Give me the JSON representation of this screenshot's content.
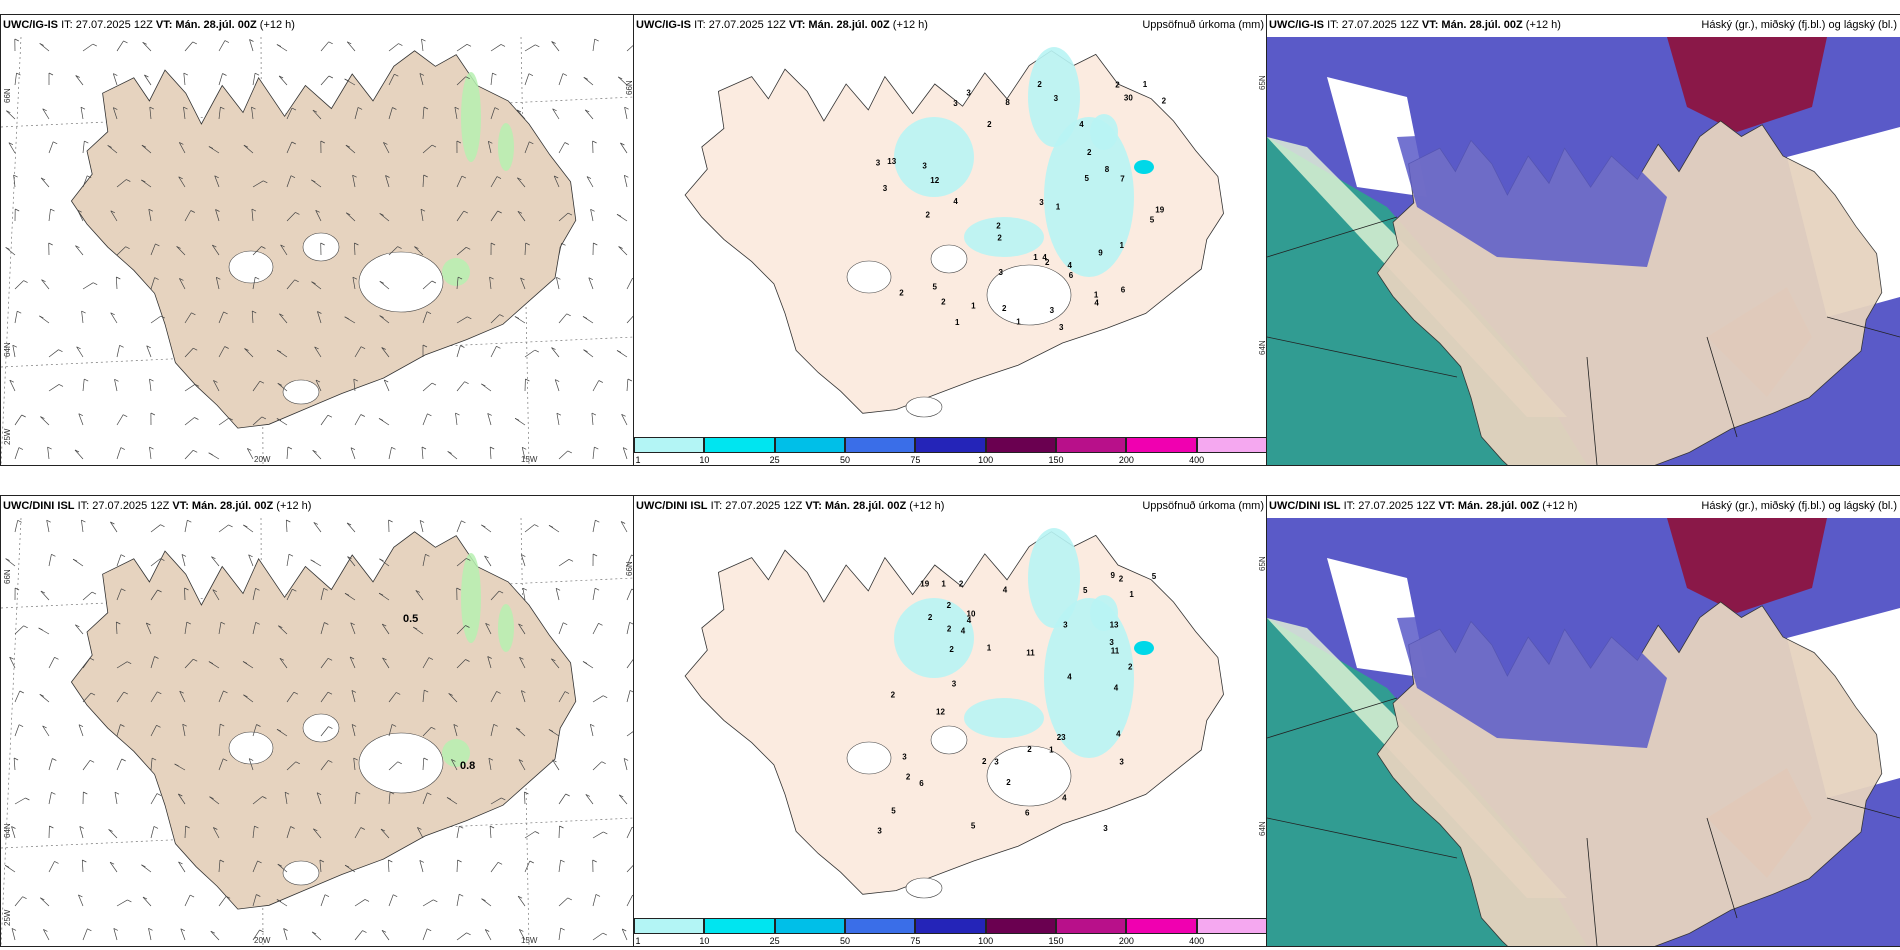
{
  "top": {
    "model": "UWC/IG-IS",
    "init": "IT: 27.07.2025 12Z",
    "vt_label": "VT:",
    "vt": "Mán. 28.júl. 00Z",
    "lead": "(+12 h)"
  },
  "bottom": {
    "model": "UWC/DINI ISL",
    "init": "IT: 27.07.2025 12Z",
    "vt_label": "VT:",
    "vt": "Mán. 28.júl. 00Z",
    "lead": "(+12 h)"
  },
  "precip_title": "Uppsöfnuð úrkoma (mm)",
  "cloud_title": "Háský (gr.), miðský (fj.bl.) og lágský (bl.)",
  "wind_axes": {
    "n66": "66N",
    "n64": "64N",
    "w25": "25W",
    "w20": "20W",
    "w15": "15W"
  },
  "wind_values": {
    "bottom_a": "0.5",
    "bottom_b": "0.8"
  },
  "precip_axes": {
    "n65": "65N",
    "n64": "64N"
  },
  "colorbar": {
    "ticks": [
      "1",
      "10",
      "25",
      "50",
      "75",
      "100",
      "150",
      "200",
      "400"
    ],
    "colors": [
      "#b3f5f5",
      "#00e5f0",
      "#00bfe8",
      "#3a6ee8",
      "#2424b8",
      "#6a0050",
      "#b8108a",
      "#f000b0",
      "#f5a8f0"
    ]
  },
  "colors": {
    "land": "#e6d3bf",
    "land_precip": "#fbebe0",
    "sea": "#ffffff",
    "precip": "#b8f4f4",
    "cloud_high": "#5a5ac8",
    "cloud_mid": "#8a1848",
    "cloud_low": "#2aa888"
  },
  "top_precip_values": [
    "3",
    "3",
    "5",
    "3",
    "8",
    "3",
    "5",
    "4",
    "2",
    "2",
    "2",
    "3",
    "2",
    "4",
    "5",
    "2",
    "3",
    "30",
    "9",
    "7",
    "1",
    "2",
    "1",
    "4",
    "1",
    "2",
    "2",
    "12",
    "1",
    "2",
    "6",
    "1",
    "4",
    "1",
    "3",
    "2",
    "2",
    "13",
    "19",
    "4",
    "8",
    "3",
    "2",
    "6",
    "3",
    "1",
    "1",
    "3"
  ],
  "bottom_precip_values": [
    "2",
    "2",
    "5",
    "4",
    "13",
    "6",
    "9",
    "3",
    "4",
    "3",
    "2",
    "3",
    "5",
    "2",
    "2",
    "3",
    "4",
    "23",
    "4",
    "5",
    "2",
    "1",
    "1",
    "2",
    "6",
    "2",
    "11",
    "3",
    "4",
    "11",
    "10",
    "3",
    "2",
    "12",
    "19",
    "5",
    "4",
    "3",
    "2",
    "4",
    "1",
    "1",
    "2",
    "3",
    "2"
  ]
}
